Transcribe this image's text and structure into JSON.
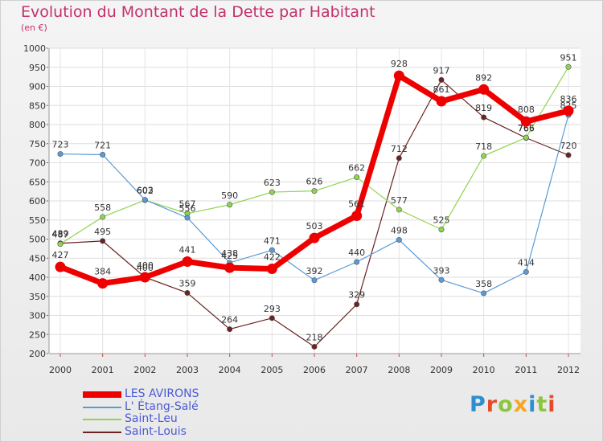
{
  "title": "Evolution du Montant de la Dette par Habitant",
  "subtitle": "(en €)",
  "logo": {
    "text": "Proxiti",
    "colors": [
      "#2e8fd0",
      "#e54b2b",
      "#8cc63f",
      "#f5a623",
      "#2e8fd0",
      "#8cc63f",
      "#e54b2b"
    ]
  },
  "chart_data": {
    "type": "line",
    "title": "Evolution du Montant de la Dette par Habitant",
    "subtitle": "(en €)",
    "x": [
      2000,
      2001,
      2002,
      2003,
      2004,
      2005,
      2006,
      2007,
      2008,
      2009,
      2010,
      2011,
      2012
    ],
    "ylim": [
      200,
      1000
    ],
    "yticks": [
      200,
      250,
      300,
      350,
      400,
      450,
      500,
      550,
      600,
      650,
      700,
      750,
      800,
      850,
      900,
      950,
      1000
    ],
    "grid": true,
    "legend_position": "bottom-left",
    "series": [
      {
        "name": "LES AVIRONS",
        "color": "#ee0000",
        "emphasis": true,
        "values": [
          427,
          384,
          400,
          441,
          425,
          422,
          503,
          561,
          928,
          861,
          892,
          808,
          836
        ]
      },
      {
        "name": "L' Étang-Salé",
        "color": "#5b9bd5",
        "values": [
          723,
          721,
          603,
          556,
          438,
          471,
          392,
          440,
          498,
          393,
          358,
          414,
          825
        ]
      },
      {
        "name": "Saint-Leu",
        "color": "#8ed44f",
        "values": [
          487,
          558,
          602,
          567,
          590,
          623,
          626,
          662,
          577,
          525,
          718,
          766,
          951
        ]
      },
      {
        "name": "Saint-Louis",
        "color": "#6b2222",
        "values": [
          489,
          495,
          400,
          359,
          264,
          293,
          218,
          329,
          712,
          917,
          819,
          765,
          720
        ]
      }
    ]
  }
}
